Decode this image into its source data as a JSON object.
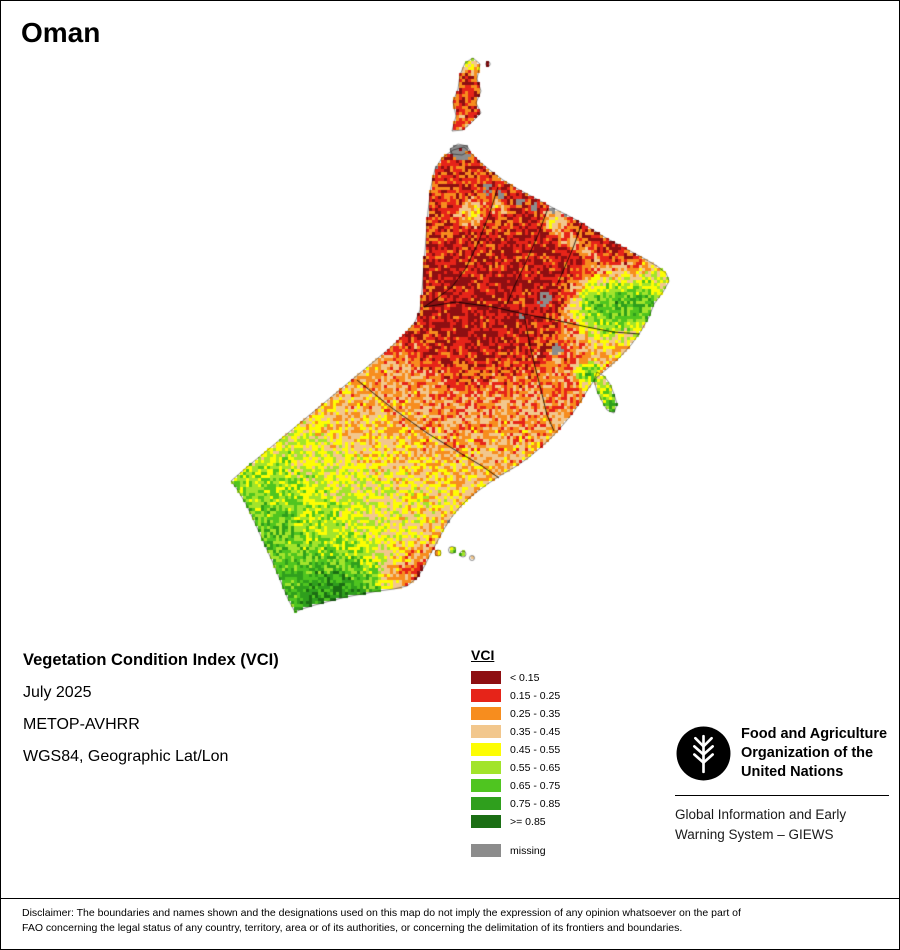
{
  "title": "Oman",
  "info": {
    "heading": "Vegetation Condition Index (VCI)",
    "date": "July 2025",
    "sensor": "METOP-AVHRR",
    "projection": "WGS84, Geographic Lat/Lon"
  },
  "legend": {
    "title": "VCI",
    "items": [
      {
        "label": "< 0.15",
        "color": "#8e0f12"
      },
      {
        "label": "0.15 - 0.25",
        "color": "#e62419"
      },
      {
        "label": "0.25 - 0.35",
        "color": "#f78d1e"
      },
      {
        "label": "0.35 - 0.45",
        "color": "#f2c78d"
      },
      {
        "label": "0.45 - 0.55",
        "color": "#fdfd03"
      },
      {
        "label": "0.55 - 0.65",
        "color": "#a2e42b"
      },
      {
        "label": "0.65 - 0.75",
        "color": "#4fc520"
      },
      {
        "label": "0.75 - 0.85",
        "color": "#2f9f1d"
      },
      {
        "label": ">= 0.85",
        "color": "#1b6e14"
      }
    ],
    "missing": {
      "label": "missing",
      "color": "#8c8c8c"
    }
  },
  "footer": {
    "fao_logo_icon": "fao-wheat-emblem",
    "org_lines": [
      "Food and Agriculture",
      "Organization of the",
      "United Nations"
    ],
    "giews": "Global Information and Early Warning System – GIEWS"
  },
  "disclaimer": "Disclaimer: The boundaries and names shown and the designations used on this map do not imply the expression of any opinion whatsoever on the part of FAO concerning the legal status of any country, territory, area or of its authorities, or concerning the delimitation of its frontiers and boundaries."
}
